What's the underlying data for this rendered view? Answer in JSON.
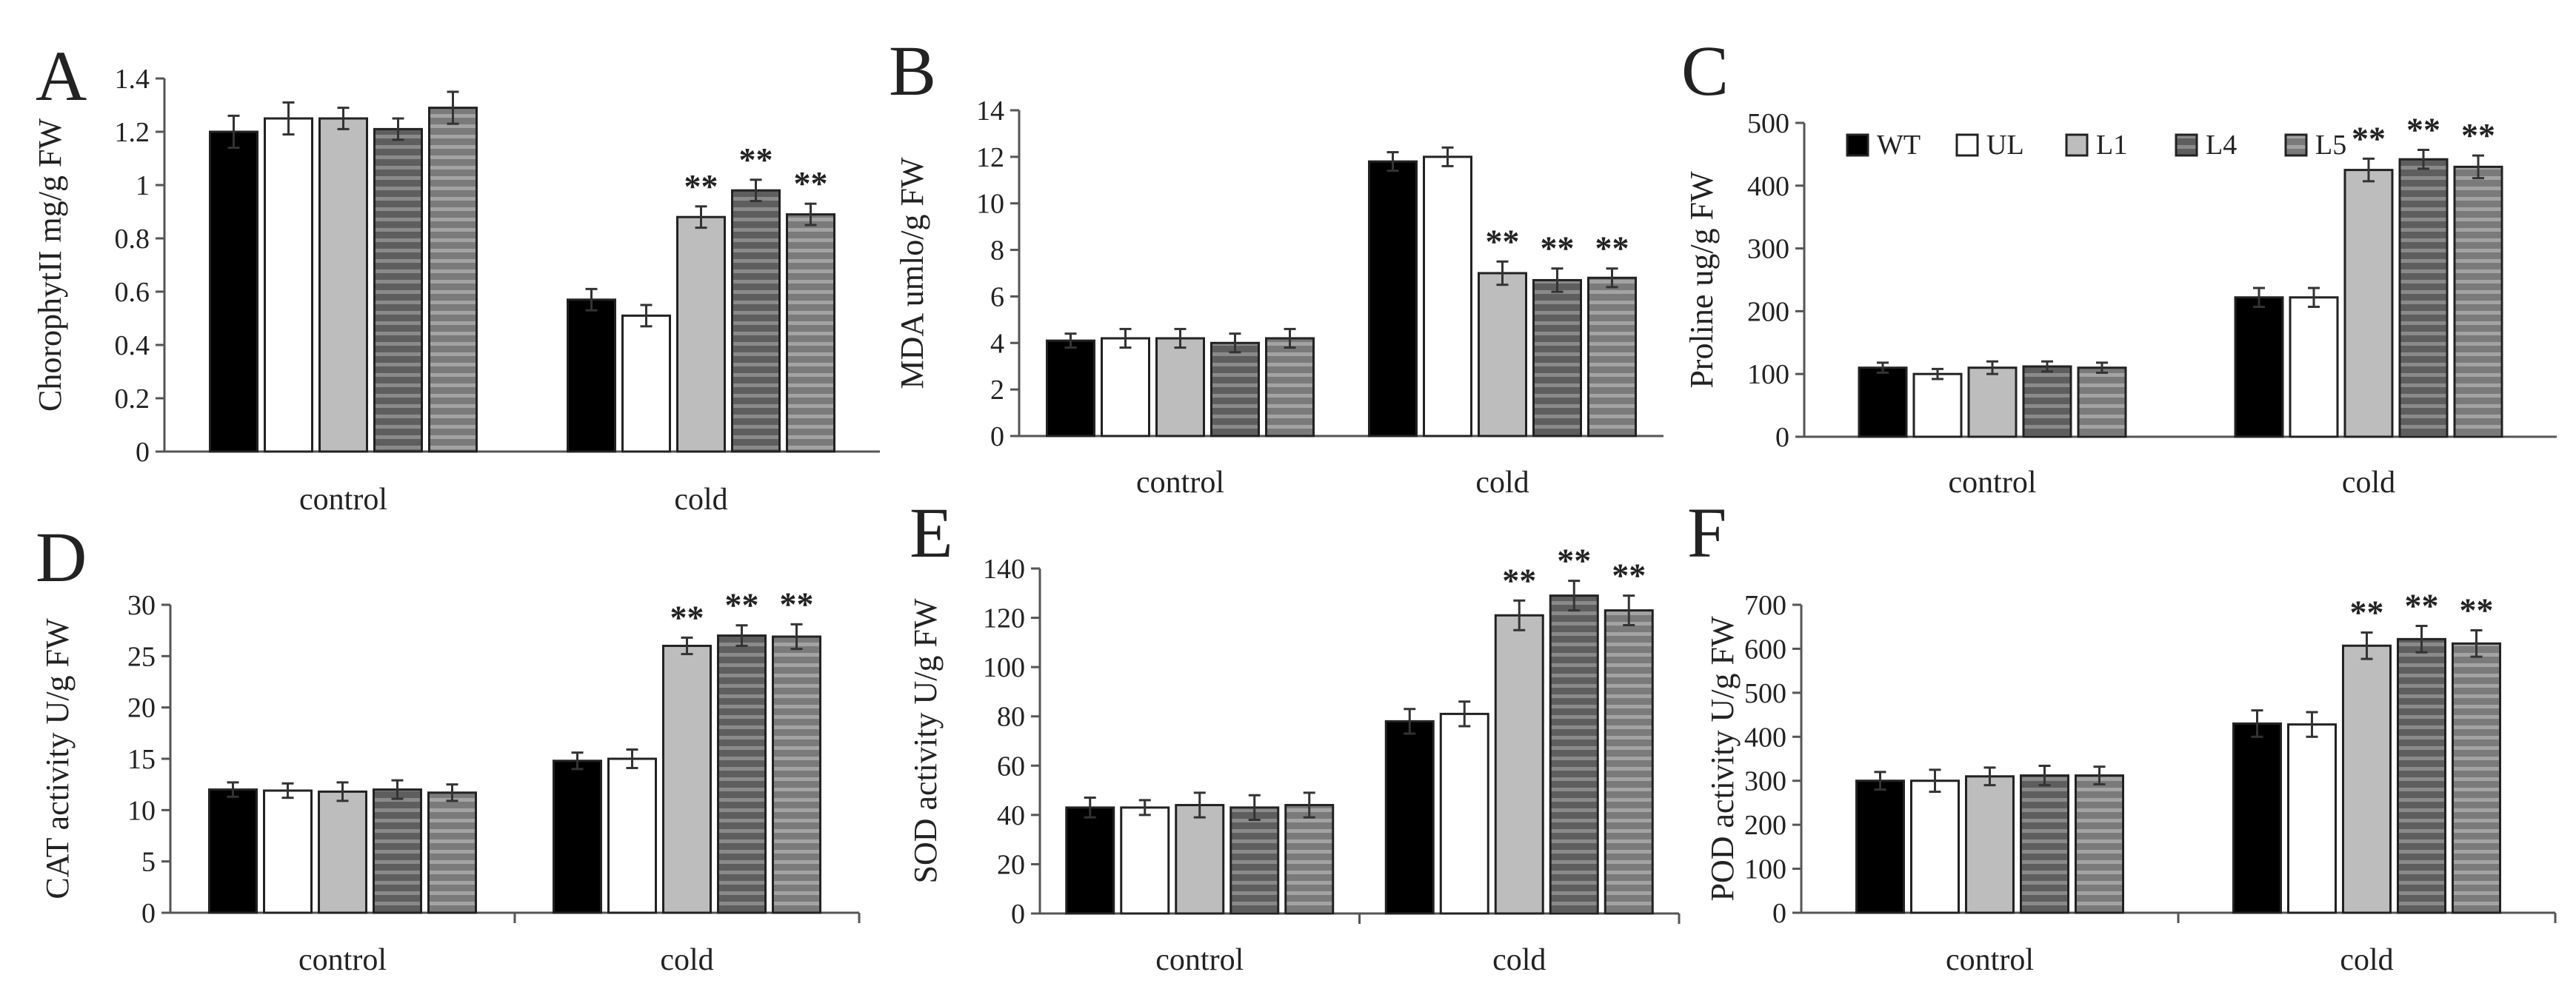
{
  "legend": [
    "WT",
    "UL",
    "L1",
    "L4",
    "L5"
  ],
  "series_colors": {
    "WT": "#000000",
    "UL": "#ffffff",
    "L1": "#bdbdbd",
    "L4": "#6a6a6a",
    "L5": "#858585"
  },
  "chart_data": [
    {
      "panel": "A",
      "type": "bar",
      "ylabel": "ChorophytII mg/g FW",
      "categories": [
        "control",
        "cold"
      ],
      "ylim": [
        0,
        1.4
      ],
      "yticks": [
        "0",
        "0.2",
        "0.4",
        "0.6",
        "0.8",
        "1",
        "1.2",
        "1.4"
      ],
      "series": [
        {
          "name": "WT",
          "values": [
            1.2,
            0.57
          ],
          "errors": [
            0.06,
            0.04
          ]
        },
        {
          "name": "UL",
          "values": [
            1.25,
            0.51
          ],
          "errors": [
            0.06,
            0.04
          ]
        },
        {
          "name": "L1",
          "values": [
            1.25,
            0.88
          ],
          "errors": [
            0.04,
            0.04
          ]
        },
        {
          "name": "L4",
          "values": [
            1.21,
            0.98
          ],
          "errors": [
            0.04,
            0.04
          ]
        },
        {
          "name": "L5",
          "values": [
            1.29,
            0.89
          ],
          "errors": [
            0.06,
            0.04
          ]
        }
      ],
      "annotations": [
        {
          "series": "L1",
          "category": "cold",
          "text": "**"
        },
        {
          "series": "L4",
          "category": "cold",
          "text": "**"
        },
        {
          "series": "L5",
          "category": "cold",
          "text": "**"
        }
      ]
    },
    {
      "panel": "B",
      "type": "bar",
      "ylabel": "MDA  umlo/g FW",
      "categories": [
        "control",
        "cold"
      ],
      "ylim": [
        0,
        14
      ],
      "yticks": [
        "0",
        "2",
        "4",
        "6",
        "8",
        "10",
        "12",
        "14"
      ],
      "series": [
        {
          "name": "WT",
          "values": [
            4.1,
            11.8
          ],
          "errors": [
            0.3,
            0.4
          ]
        },
        {
          "name": "UL",
          "values": [
            4.2,
            12.0
          ],
          "errors": [
            0.4,
            0.4
          ]
        },
        {
          "name": "L1",
          "values": [
            4.2,
            7.0
          ],
          "errors": [
            0.4,
            0.5
          ]
        },
        {
          "name": "L4",
          "values": [
            4.0,
            6.7
          ],
          "errors": [
            0.4,
            0.5
          ]
        },
        {
          "name": "L5",
          "values": [
            4.2,
            6.8
          ],
          "errors": [
            0.4,
            0.4
          ]
        }
      ],
      "annotations": [
        {
          "series": "L1",
          "category": "cold",
          "text": "**"
        },
        {
          "series": "L4",
          "category": "cold",
          "text": "**"
        },
        {
          "series": "L5",
          "category": "cold",
          "text": "**"
        }
      ]
    },
    {
      "panel": "C",
      "type": "bar",
      "ylabel": "Proline ug/g FW",
      "categories": [
        "control",
        "cold"
      ],
      "ylim": [
        0,
        500
      ],
      "yticks": [
        "0",
        "100",
        "200",
        "300",
        "400",
        "500"
      ],
      "legend_position": "top-left",
      "series": [
        {
          "name": "WT",
          "values": [
            110,
            222
          ],
          "errors": [
            8,
            15
          ]
        },
        {
          "name": "UL",
          "values": [
            100,
            222
          ],
          "errors": [
            8,
            15
          ]
        },
        {
          "name": "L1",
          "values": [
            110,
            425
          ],
          "errors": [
            10,
            18
          ]
        },
        {
          "name": "L4",
          "values": [
            112,
            442
          ],
          "errors": [
            8,
            15
          ]
        },
        {
          "name": "L5",
          "values": [
            110,
            430
          ],
          "errors": [
            8,
            18
          ]
        }
      ],
      "annotations": [
        {
          "series": "L1",
          "category": "cold",
          "text": "**"
        },
        {
          "series": "L4",
          "category": "cold",
          "text": "**"
        },
        {
          "series": "L5",
          "category": "cold",
          "text": "**"
        }
      ]
    },
    {
      "panel": "D",
      "type": "bar",
      "ylabel": "CAT activity U/g FW",
      "categories": [
        "control",
        "cold"
      ],
      "ylim": [
        0,
        30
      ],
      "yticks": [
        "0",
        "5",
        "10",
        "15",
        "20",
        "25",
        "30"
      ],
      "series": [
        {
          "name": "WT",
          "values": [
            12.0,
            14.8
          ],
          "errors": [
            0.7,
            0.8
          ]
        },
        {
          "name": "UL",
          "values": [
            11.9,
            15.0
          ],
          "errors": [
            0.7,
            0.9
          ]
        },
        {
          "name": "L1",
          "values": [
            11.8,
            26.0
          ],
          "errors": [
            0.9,
            0.8
          ]
        },
        {
          "name": "L4",
          "values": [
            12.0,
            27.0
          ],
          "errors": [
            0.9,
            1.0
          ]
        },
        {
          "name": "L5",
          "values": [
            11.7,
            26.9
          ],
          "errors": [
            0.8,
            1.2
          ]
        }
      ],
      "annotations": [
        {
          "series": "L1",
          "category": "cold",
          "text": "**"
        },
        {
          "series": "L4",
          "category": "cold",
          "text": "**"
        },
        {
          "series": "L5",
          "category": "cold",
          "text": "**"
        }
      ]
    },
    {
      "panel": "E",
      "type": "bar",
      "ylabel": "SOD activity U/g FW",
      "categories": [
        "control",
        "cold"
      ],
      "ylim": [
        0,
        140
      ],
      "yticks": [
        "0",
        "20",
        "40",
        "60",
        "80",
        "100",
        "120",
        "140"
      ],
      "series": [
        {
          "name": "WT",
          "values": [
            43,
            78
          ],
          "errors": [
            4,
            5
          ]
        },
        {
          "name": "UL",
          "values": [
            43,
            81
          ],
          "errors": [
            3,
            5
          ]
        },
        {
          "name": "L1",
          "values": [
            44,
            121
          ],
          "errors": [
            5,
            6
          ]
        },
        {
          "name": "L4",
          "values": [
            43,
            129
          ],
          "errors": [
            5,
            6
          ]
        },
        {
          "name": "L5",
          "values": [
            44,
            123
          ],
          "errors": [
            5,
            6
          ]
        }
      ],
      "annotations": [
        {
          "series": "L1",
          "category": "cold",
          "text": "**"
        },
        {
          "series": "L4",
          "category": "cold",
          "text": "**"
        },
        {
          "series": "L5",
          "category": "cold",
          "text": "**"
        }
      ]
    },
    {
      "panel": "F",
      "type": "bar",
      "ylabel": "POD activity U/g FW",
      "categories": [
        "control",
        "cold"
      ],
      "ylim": [
        0,
        700
      ],
      "yticks": [
        "0",
        "100",
        "200",
        "300",
        "400",
        "500",
        "600",
        "700"
      ],
      "series": [
        {
          "name": "WT",
          "values": [
            300,
            430
          ],
          "errors": [
            20,
            30
          ]
        },
        {
          "name": "UL",
          "values": [
            300,
            428
          ],
          "errors": [
            25,
            28
          ]
        },
        {
          "name": "L1",
          "values": [
            310,
            607
          ],
          "errors": [
            20,
            30
          ]
        },
        {
          "name": "L4",
          "values": [
            312,
            622
          ],
          "errors": [
            22,
            30
          ]
        },
        {
          "name": "L5",
          "values": [
            312,
            612
          ],
          "errors": [
            20,
            30
          ]
        }
      ],
      "annotations": [
        {
          "series": "L1",
          "category": "cold",
          "text": "**"
        },
        {
          "series": "L4",
          "category": "cold",
          "text": "**"
        },
        {
          "series": "L5",
          "category": "cold",
          "text": "**"
        }
      ]
    }
  ]
}
